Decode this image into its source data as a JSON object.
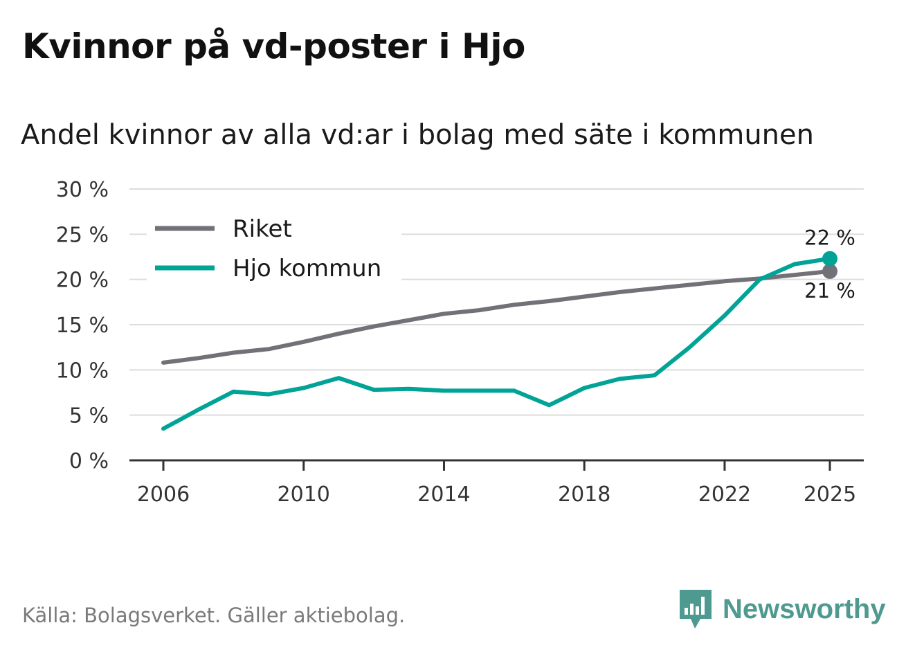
{
  "header": {
    "title": "Kvinnor på vd-poster i Hjo",
    "subtitle": "Andel kvinnor av alla vd:ar i bolag med säte i kommunen"
  },
  "footer": {
    "source": "Källa: Bolagsverket. Gäller aktiebolag.",
    "brand": "Newsworthy",
    "brand_color": "#4f9a90"
  },
  "chart_data": {
    "type": "line",
    "title": "Kvinnor på vd-poster i Hjo",
    "subtitle": "Andel kvinnor av alla vd:ar i bolag med säte i kommunen",
    "xlabel": "",
    "ylabel": "",
    "x": [
      2006,
      2007,
      2008,
      2009,
      2010,
      2011,
      2012,
      2013,
      2014,
      2015,
      2016,
      2017,
      2018,
      2019,
      2020,
      2021,
      2022,
      2023,
      2024,
      2025
    ],
    "x_ticks": [
      2006,
      2010,
      2014,
      2018,
      2022,
      2025
    ],
    "x_tick_labels": [
      "2006",
      "2010",
      "2014",
      "2018",
      "2022",
      "2025"
    ],
    "ylim": [
      0,
      30
    ],
    "y_ticks": [
      0,
      5,
      10,
      15,
      20,
      25,
      30
    ],
    "y_tick_labels": [
      "0 %",
      "5 %",
      "10 %",
      "15 %",
      "20 %",
      "25 %",
      "30 %"
    ],
    "grid": true,
    "legend_position": "top-left",
    "series": [
      {
        "name": "Riket",
        "color": "#727178",
        "values": [
          10.8,
          11.3,
          11.9,
          12.3,
          13.1,
          14.0,
          14.8,
          15.5,
          16.2,
          16.6,
          17.2,
          17.6,
          18.1,
          18.6,
          19.0,
          19.4,
          19.8,
          20.1,
          20.5,
          20.9
        ],
        "end_label": "21 %"
      },
      {
        "name": "Hjo kommun",
        "color": "#00a396",
        "values": [
          3.5,
          5.6,
          7.6,
          7.3,
          8.0,
          9.1,
          7.8,
          7.9,
          7.7,
          7.7,
          7.7,
          6.1,
          8.0,
          9.0,
          9.4,
          12.5,
          16.0,
          20.0,
          21.7,
          22.3
        ],
        "end_label": "22 %"
      }
    ]
  }
}
